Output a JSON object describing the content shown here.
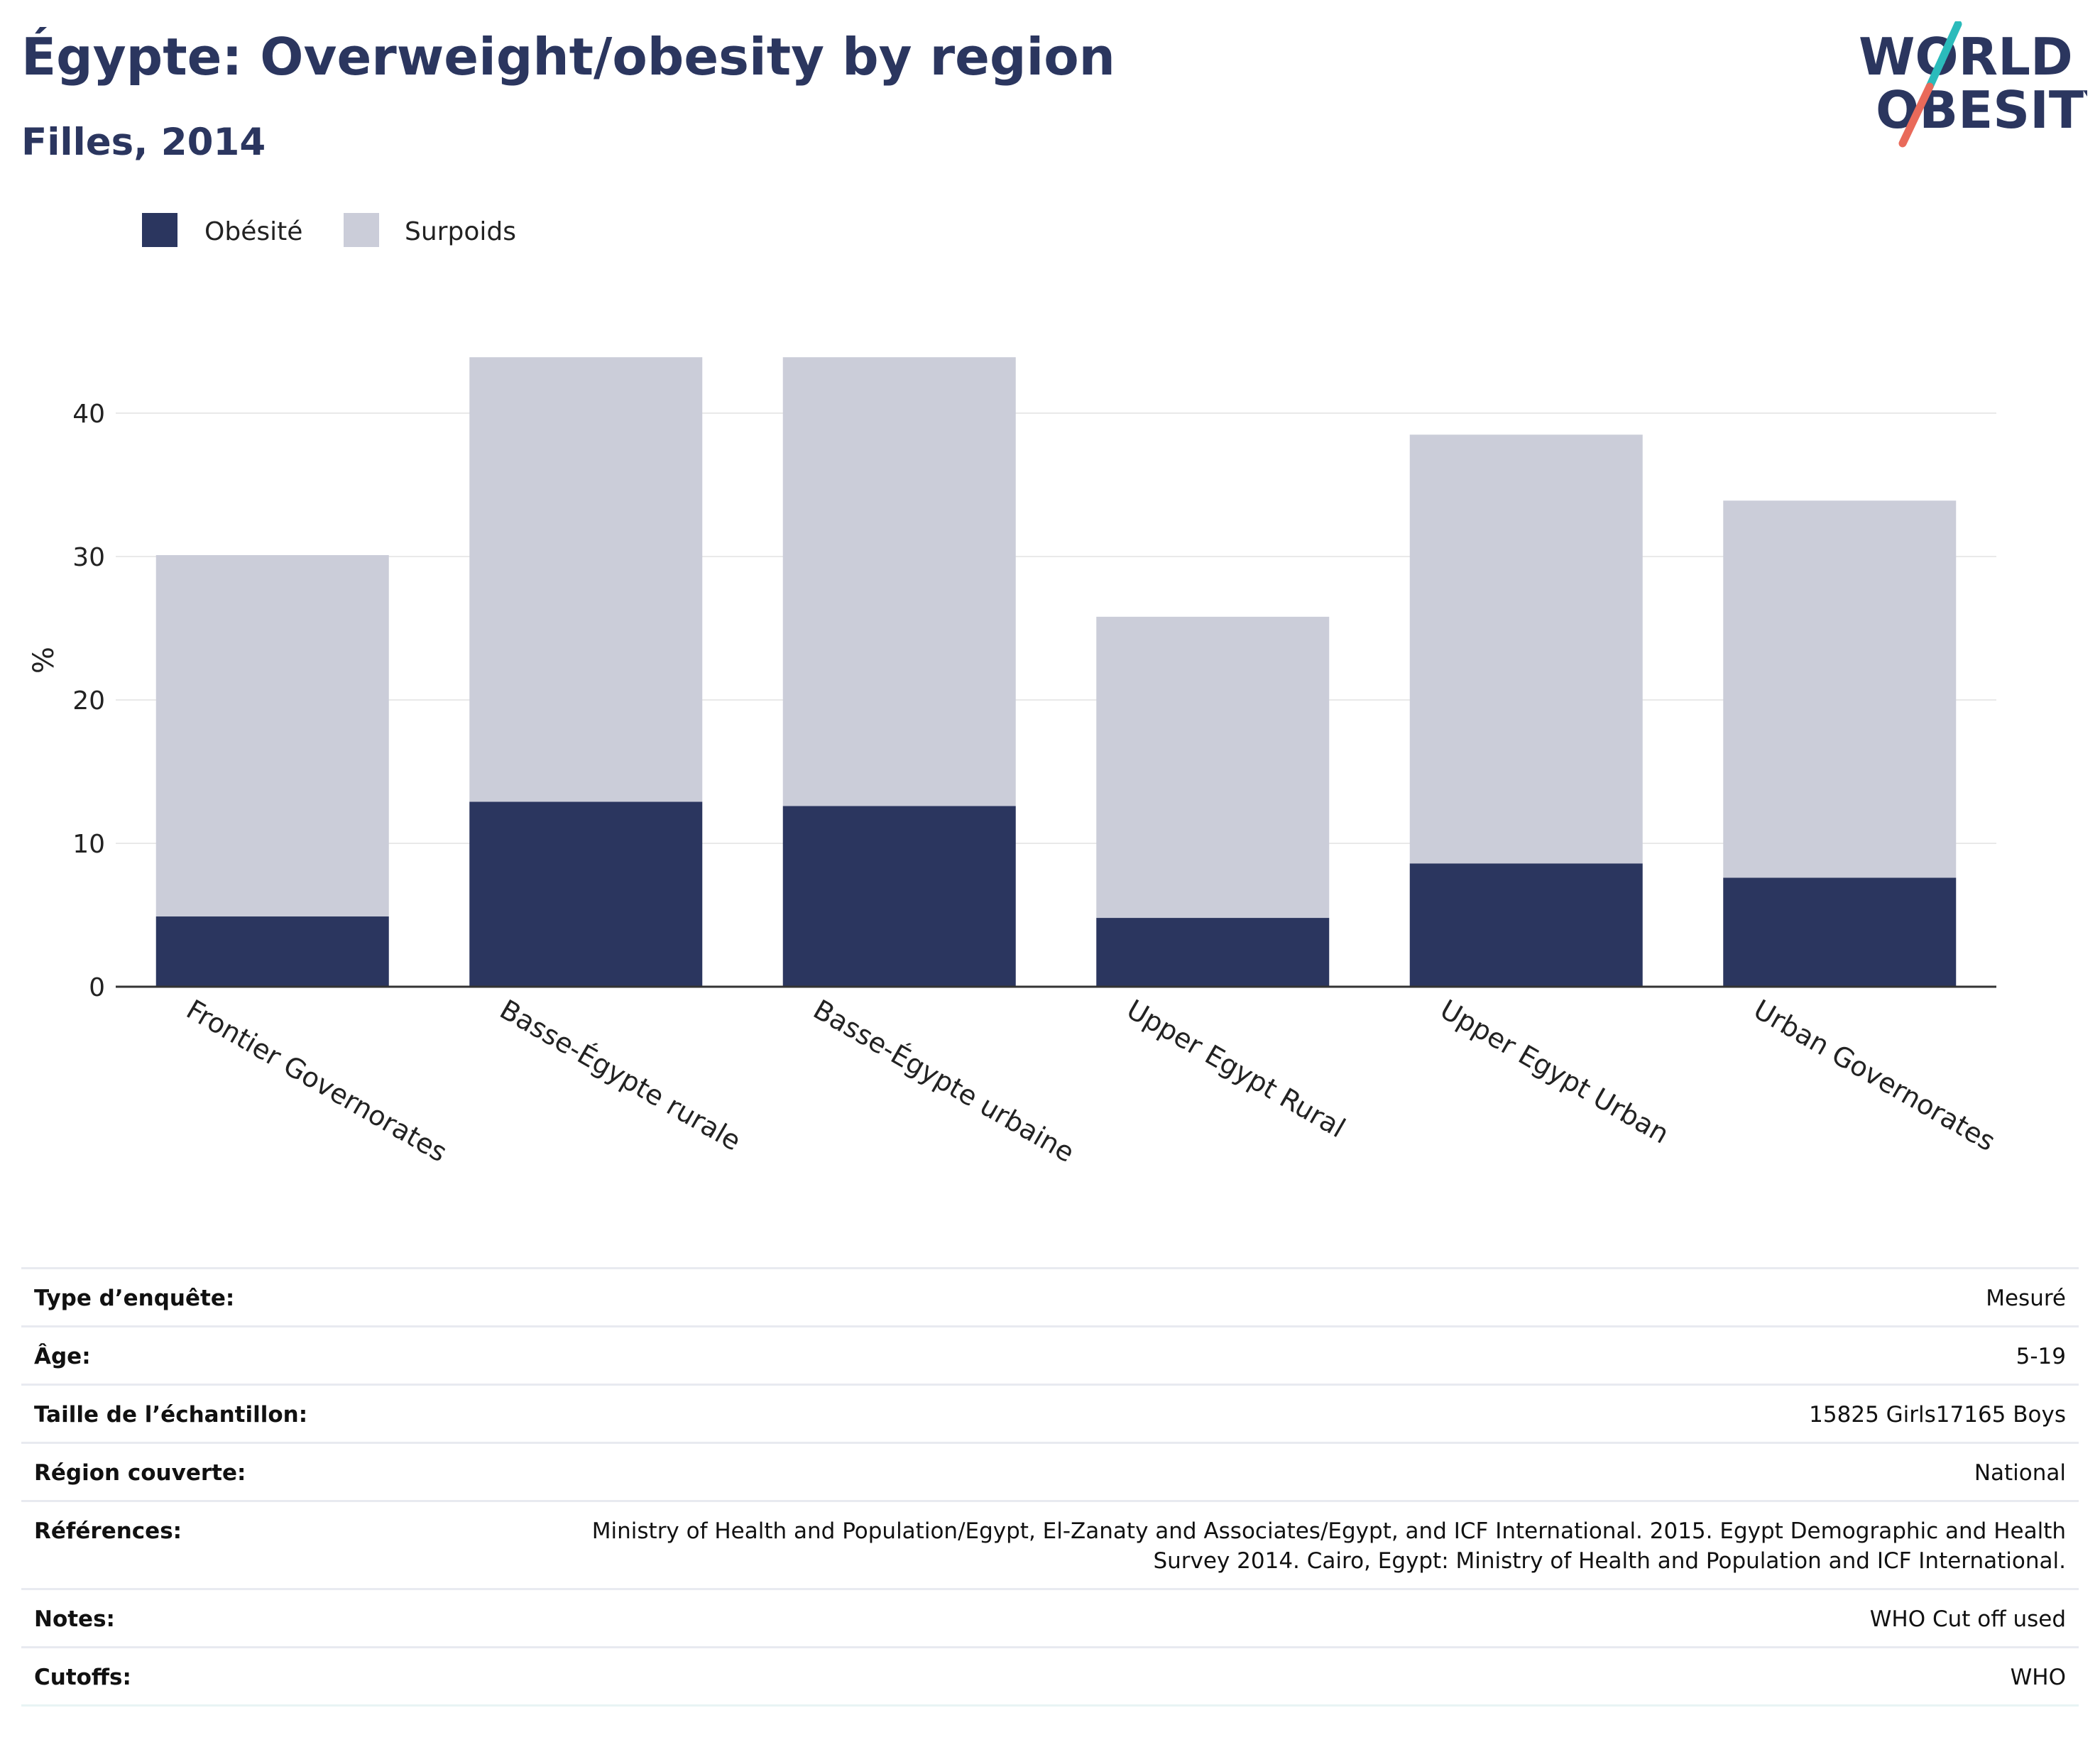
{
  "header": {
    "title": "Égypte: Overweight/obesity by region",
    "subtitle": "Filles, 2014"
  },
  "logo": {
    "line1": "WORLD",
    "line2": "OBESITY",
    "colors": {
      "text": "#2b365f",
      "slash_top": "#2bbbbb",
      "slash_bottom": "#e96a5a"
    }
  },
  "colors": {
    "obesity": "#2b365f",
    "overweight": "#cbcdd9",
    "grid": "#e9e9e9",
    "axis": "#333333",
    "text": "#222222"
  },
  "chart_data": {
    "type": "bar",
    "stacked": true,
    "categories": [
      "Frontier Governorates",
      "Basse-Égypte rurale",
      "Basse-Égypte urbaine",
      "Upper Egypt Rural",
      "Upper Egypt Urban",
      "Urban Governorates"
    ],
    "series": [
      {
        "name": "Obésité",
        "values": [
          4.9,
          12.9,
          12.6,
          4.8,
          8.6,
          7.6
        ]
      },
      {
        "name": "Surpoids",
        "values": [
          25.2,
          31.0,
          31.3,
          21.0,
          29.9,
          26.3
        ]
      }
    ],
    "totals": [
      30.1,
      43.9,
      43.9,
      25.8,
      38.5,
      33.9
    ],
    "ylabel": "%",
    "xlabel": "",
    "ylim": [
      0,
      45
    ],
    "yticks": [
      0,
      10,
      20,
      30,
      40
    ],
    "grid": true,
    "legend": "top-left"
  },
  "info": [
    {
      "label": "Type d’enquête:",
      "value": "Mesuré"
    },
    {
      "label": "Âge:",
      "value": "5-19"
    },
    {
      "label": "Taille de l’échantillon:",
      "value": "15825 Girls17165 Boys"
    },
    {
      "label": "Région couverte:",
      "value": "National"
    },
    {
      "label": "Références:",
      "value": "Ministry of Health and Population/Egypt, El-Zanaty and Associates/Egypt, and ICF International. 2015. Egypt Demographic and Health Survey 2014. Cairo, Egypt: Ministry of Health and Population and ICF International."
    },
    {
      "label": "Notes:",
      "value": "WHO Cut off used"
    },
    {
      "label": "Cutoffs:",
      "value": "WHO"
    }
  ]
}
